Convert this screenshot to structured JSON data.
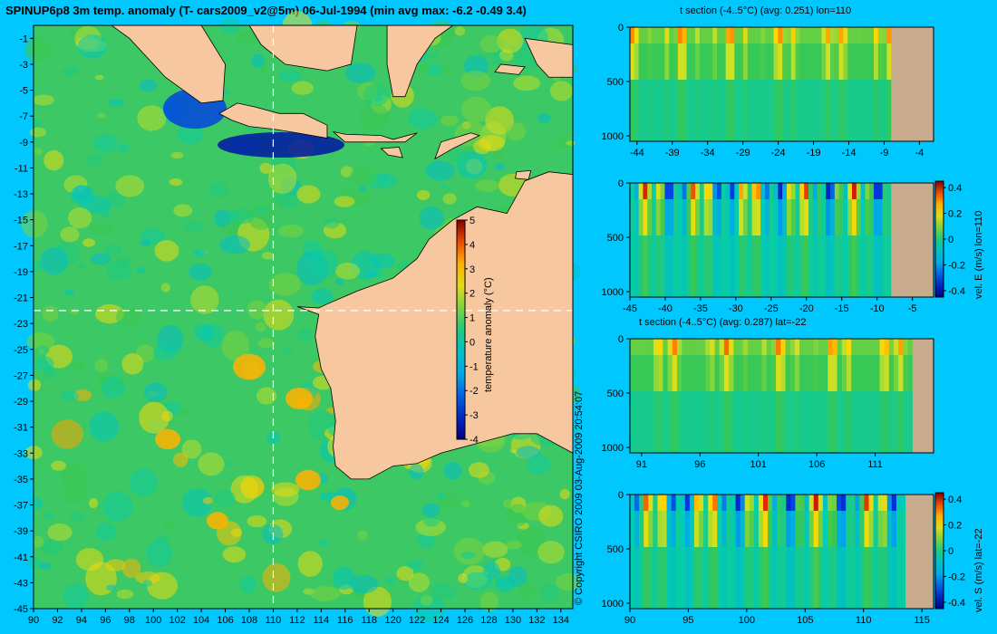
{
  "page": {
    "title": "SPINUP6p8 3m temp. anomaly (T- cars2009_v2@5m) 06-Jul-1994 (min avg max: -6.2 -0.49 3.4)",
    "copyright": "© Copyright CSIRO 2009    03-Aug-2009 20:54:07"
  },
  "colors": {
    "background": "#00c8ff",
    "land": "#f7c8a0",
    "seafloor": "#c8aa8c",
    "ocean_base": "#3cc864"
  },
  "chart_data": [
    {
      "type": "heatmap",
      "id": "map",
      "title": "SPINUP6p8 3m temp. anomaly (T- cars2009_v2@5m) 06-Jul-1994 (min avg max: -6.2 -0.49 3.4)",
      "x_ticks": [
        90,
        92,
        94,
        96,
        98,
        100,
        102,
        104,
        106,
        108,
        110,
        112,
        114,
        116,
        118,
        120,
        122,
        124,
        126,
        128,
        130,
        132,
        134
      ],
      "y_ticks": [
        -1,
        -3,
        -5,
        -7,
        -9,
        -11,
        -13,
        -15,
        -17,
        -19,
        -21,
        -23,
        -25,
        -27,
        -29,
        -31,
        -33,
        -35,
        -37,
        -39,
        -41,
        -43,
        -45
      ],
      "xlim": [
        90,
        135
      ],
      "ylim": [
        -45,
        0
      ],
      "section_lon": 110,
      "section_lat": -22,
      "colorbar": {
        "label": "temperature anomaly (°C)",
        "ticks": [
          5,
          4,
          3,
          2,
          1,
          0,
          -1,
          -2,
          -3,
          -4
        ],
        "range": [
          -4,
          5
        ]
      }
    },
    {
      "type": "heatmap",
      "id": "sec1",
      "title": "t section (-4..5°C) (avg: 0.251) lon=110",
      "x_ticks": [
        -44,
        -39,
        -34,
        -29,
        -24,
        -19,
        -14,
        -9,
        -4
      ],
      "y_ticks": [
        0,
        500,
        1000
      ],
      "xlim": [
        -45,
        -2
      ],
      "ylim": [
        1050,
        0
      ]
    },
    {
      "type": "heatmap",
      "id": "sec2",
      "title": "",
      "x_ticks": [
        -45,
        -40,
        -35,
        -30,
        -25,
        -20,
        -15,
        -10,
        -5
      ],
      "y_ticks": [
        0,
        500,
        1000
      ],
      "xlim": [
        -45,
        -2
      ],
      "ylim": [
        1050,
        0
      ],
      "colorbar": {
        "label": "vel. E (m/s) lon=110",
        "ticks": [
          0.4,
          0.2,
          0,
          -0.2,
          -0.4
        ],
        "range": [
          -0.45,
          0.45
        ]
      }
    },
    {
      "type": "heatmap",
      "id": "sec3",
      "title": "t section (-4..5°C) (avg: 0.287) lat=-22",
      "x_ticks": [
        91,
        96,
        101,
        106,
        111
      ],
      "y_ticks": [
        0,
        500,
        1000
      ],
      "xlim": [
        90,
        116
      ],
      "ylim": [
        1050,
        0
      ]
    },
    {
      "type": "heatmap",
      "id": "sec4",
      "title": "",
      "x_ticks": [
        90,
        95,
        100,
        105,
        110,
        115
      ],
      "y_ticks": [
        0,
        500,
        1000
      ],
      "xlim": [
        90,
        116
      ],
      "ylim": [
        1050,
        0
      ],
      "colorbar": {
        "label": "vel. S (m/s) lat=-22",
        "ticks": [
          0.4,
          0.2,
          0,
          -0.2,
          -0.4
        ],
        "range": [
          -0.45,
          0.45
        ]
      }
    }
  ]
}
